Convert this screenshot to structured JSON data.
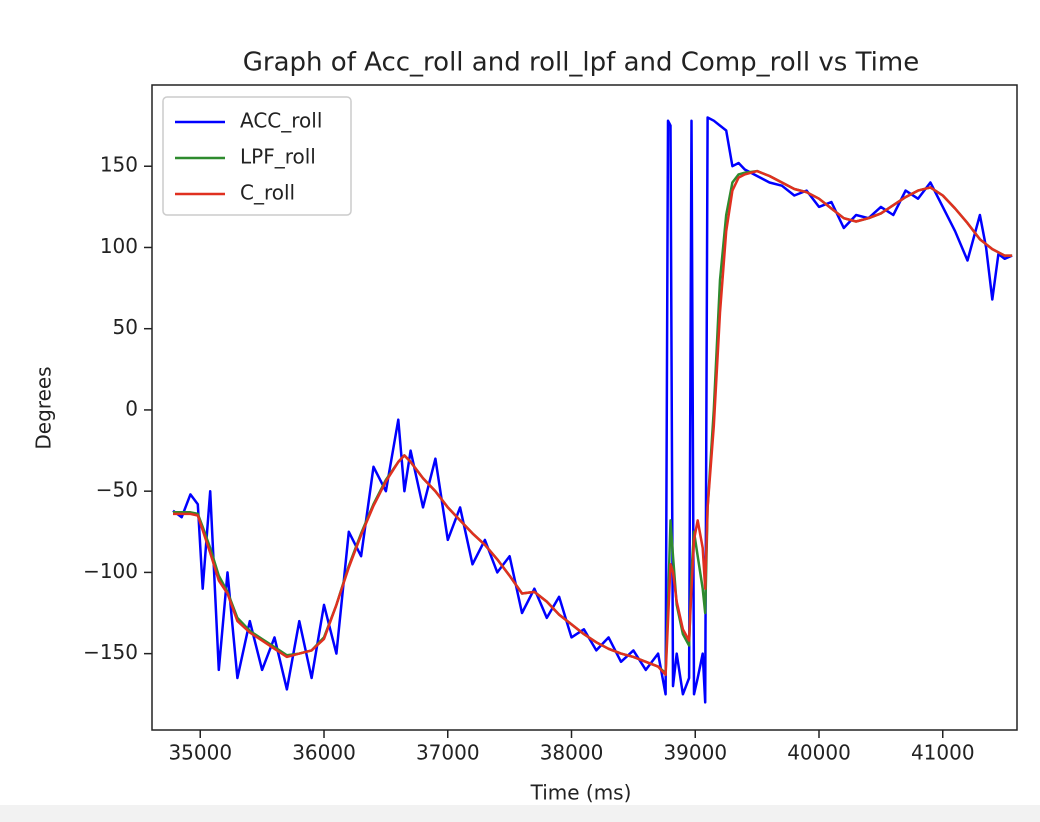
{
  "chart_data": {
    "type": "line",
    "title": "Graph of Acc_roll and roll_lpf and Comp_roll vs Time",
    "xlabel": "Time (ms)",
    "ylabel": "Degrees",
    "x": [
      34780,
      34850,
      34920,
      34980,
      35020,
      35080,
      35150,
      35220,
      35300,
      35400,
      35500,
      35600,
      35700,
      35800,
      35900,
      36000,
      36100,
      36200,
      36300,
      36400,
      36500,
      36600,
      36650,
      36700,
      36800,
      36900,
      37000,
      37100,
      37200,
      37300,
      37400,
      37500,
      37600,
      37700,
      37800,
      37900,
      38000,
      38100,
      38200,
      38300,
      38400,
      38500,
      38600,
      38700,
      38760,
      38780,
      38800,
      38820,
      38850,
      38900,
      38950,
      38970,
      38990,
      39020,
      39060,
      39080,
      39100,
      39150,
      39200,
      39250,
      39300,
      39350,
      39400,
      39500,
      39600,
      39700,
      39800,
      39900,
      40000,
      40100,
      40200,
      40300,
      40400,
      40500,
      40600,
      40700,
      40800,
      40900,
      41000,
      41100,
      41200,
      41300,
      41350,
      41400,
      41450,
      41500,
      41560
    ],
    "series": [
      {
        "name": "ACC_roll",
        "color": "#0000ff",
        "values": [
          -62,
          -66,
          -52,
          -58,
          -110,
          -50,
          -160,
          -100,
          -165,
          -130,
          -160,
          -140,
          -172,
          -130,
          -165,
          -120,
          -150,
          -75,
          -90,
          -35,
          -50,
          -6,
          -50,
          -25,
          -60,
          -30,
          -80,
          -60,
          -95,
          -80,
          -100,
          -90,
          -125,
          -110,
          -128,
          -115,
          -140,
          -135,
          -148,
          -140,
          -155,
          -148,
          -160,
          -150,
          -175,
          178,
          175,
          -170,
          -150,
          -175,
          -165,
          178,
          -175,
          -165,
          -150,
          -180,
          180,
          178,
          175,
          172,
          150,
          152,
          148,
          144,
          140,
          138,
          132,
          135,
          125,
          128,
          112,
          120,
          118,
          125,
          120,
          135,
          130,
          140,
          125,
          110,
          92,
          120,
          100,
          68,
          96,
          93,
          95
        ]
      },
      {
        "name": "LPF_roll",
        "color": "#2e8b2e",
        "values": [
          -63,
          -63,
          -63,
          -64,
          -72,
          -85,
          -102,
          -112,
          -128,
          -136,
          -141,
          -146,
          -151,
          -150,
          -148,
          -140,
          -120,
          -96,
          -76,
          -58,
          -43,
          -32,
          -28,
          -32,
          -42,
          -50,
          -60,
          -68,
          -76,
          -83,
          -92,
          -102,
          -113,
          -112,
          -118,
          -126,
          -132,
          -138,
          -143,
          -147,
          -150,
          -152,
          -155,
          -158,
          -162,
          -120,
          -68,
          -90,
          -120,
          -138,
          -145,
          -100,
          -75,
          -90,
          -110,
          -125,
          -60,
          0,
          80,
          120,
          140,
          145,
          146,
          147,
          144,
          140,
          136,
          134,
          130,
          124,
          118,
          116,
          118,
          121,
          126,
          131,
          135,
          137,
          132,
          124,
          115,
          105,
          102,
          99,
          97,
          95,
          95
        ]
      },
      {
        "name": "C_roll",
        "color": "#e03020",
        "values": [
          -64,
          -64,
          -64,
          -65,
          -74,
          -88,
          -105,
          -113,
          -130,
          -137,
          -142,
          -147,
          -152,
          -150,
          -148,
          -141,
          -120,
          -97,
          -77,
          -59,
          -44,
          -32,
          -28,
          -32,
          -42,
          -50,
          -60,
          -68,
          -76,
          -83,
          -92,
          -102,
          -113,
          -112,
          -118,
          -126,
          -132,
          -138,
          -143,
          -147,
          -150,
          -152,
          -155,
          -158,
          -163,
          -130,
          -95,
          -100,
          -118,
          -135,
          -142,
          -110,
          -80,
          -68,
          -85,
          -110,
          -60,
          -10,
          60,
          110,
          135,
          143,
          145,
          147,
          144,
          140,
          136,
          134,
          130,
          124,
          118,
          116,
          118,
          121,
          126,
          131,
          135,
          137,
          132,
          124,
          115,
          105,
          102,
          99,
          97,
          95,
          95
        ]
      }
    ],
    "xlim": [
      34610,
      41600
    ],
    "ylim": [
      -197,
      200
    ],
    "xticks": [
      35000,
      36000,
      37000,
      38000,
      39000,
      40000,
      41000
    ],
    "yticks": [
      {
        "value": -150,
        "label": "−150"
      },
      {
        "value": -100,
        "label": "−100"
      },
      {
        "value": -50,
        "label": "−50"
      },
      0,
      50,
      100,
      150
    ],
    "legend": "upper left"
  }
}
